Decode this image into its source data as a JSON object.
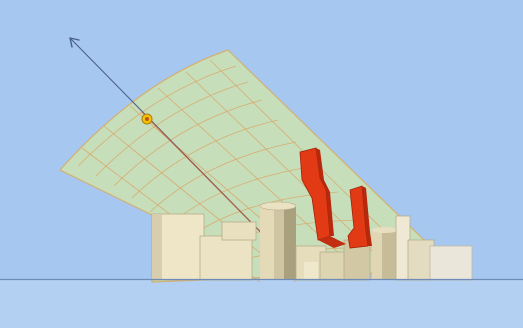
{
  "diagram": {
    "colors": {
      "sky": "#a6c7ef",
      "ground": "#b3d0f2",
      "horizon_line": "#6f8bb8",
      "fan_fill": "#cde2b2",
      "fan_grid": "#d8a868",
      "axis_line": "#4a5f8f",
      "sun_marker": "#f2c400",
      "building_light": "#efe6c8",
      "building_shade": "#b9ad86",
      "obstruction_red": "#e23a14"
    },
    "icons": {
      "sun": "sun-marker-icon",
      "direction_arrow": "arrow-up-left-icon"
    },
    "tick_labels": [
      "",
      "",
      ""
    ]
  }
}
